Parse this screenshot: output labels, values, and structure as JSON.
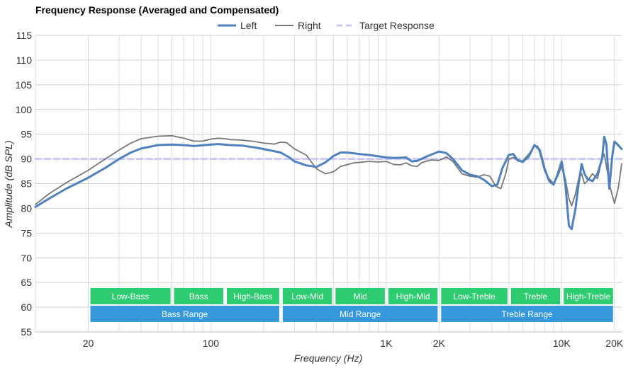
{
  "chart_data": {
    "type": "line",
    "title": "Frequency Response (Averaged and Compensated)",
    "xlabel": "Frequency (Hz)",
    "ylabel": "Amplitude (dB SPL)",
    "x_scale": "log",
    "xlim": [
      10,
      22000
    ],
    "ylim": [
      55,
      115
    ],
    "y_ticks": [
      55,
      60,
      65,
      70,
      75,
      80,
      85,
      90,
      95,
      100,
      105,
      110,
      115
    ],
    "x_ticks": [
      {
        "value": 20,
        "label": "20"
      },
      {
        "value": 100,
        "label": "100"
      },
      {
        "value": 1000,
        "label": "1K"
      },
      {
        "value": 2000,
        "label": "2K"
      },
      {
        "value": 10000,
        "label": "10K"
      },
      {
        "value": 20000,
        "label": "20K"
      }
    ],
    "grid": true,
    "legend_position": "top-center",
    "series": [
      {
        "name": "Left",
        "color": "#4f81bd",
        "style": "solid",
        "points": [
          [
            10,
            80.3
          ],
          [
            12,
            82
          ],
          [
            15,
            84
          ],
          [
            20,
            86.2
          ],
          [
            25,
            88.2
          ],
          [
            30,
            90
          ],
          [
            35,
            91.3
          ],
          [
            40,
            92.1
          ],
          [
            50,
            92.8
          ],
          [
            60,
            92.9
          ],
          [
            70,
            92.8
          ],
          [
            80,
            92.6
          ],
          [
            100,
            92.9
          ],
          [
            110,
            93
          ],
          [
            130,
            92.8
          ],
          [
            150,
            92.7
          ],
          [
            180,
            92.3
          ],
          [
            200,
            92
          ],
          [
            250,
            91.3
          ],
          [
            280,
            90.3
          ],
          [
            300,
            89.5
          ],
          [
            350,
            88.7
          ],
          [
            400,
            88.4
          ],
          [
            450,
            89.3
          ],
          [
            500,
            90.6
          ],
          [
            550,
            91.3
          ],
          [
            600,
            91.3
          ],
          [
            700,
            91
          ],
          [
            800,
            90.8
          ],
          [
            1000,
            90.3
          ],
          [
            1100,
            90.2
          ],
          [
            1300,
            90.3
          ],
          [
            1400,
            89.5
          ],
          [
            1500,
            89.6
          ],
          [
            1700,
            90.5
          ],
          [
            2000,
            91.5
          ],
          [
            2200,
            91.2
          ],
          [
            2400,
            90
          ],
          [
            2700,
            87.7
          ],
          [
            3000,
            86.8
          ],
          [
            3300,
            86.5
          ],
          [
            3600,
            85.8
          ],
          [
            4000,
            84.5
          ],
          [
            4300,
            84.8
          ],
          [
            4600,
            88.2
          ],
          [
            5000,
            90.8
          ],
          [
            5300,
            91
          ],
          [
            5600,
            89.8
          ],
          [
            6000,
            89.4
          ],
          [
            6500,
            90.5
          ],
          [
            7000,
            92.8
          ],
          [
            7500,
            91.8
          ],
          [
            8000,
            88
          ],
          [
            8500,
            85.5
          ],
          [
            9000,
            84.8
          ],
          [
            9500,
            87
          ],
          [
            10000,
            89.5
          ],
          [
            10500,
            85
          ],
          [
            11000,
            76.5
          ],
          [
            11400,
            75.8
          ],
          [
            12000,
            80
          ],
          [
            12500,
            85
          ],
          [
            13000,
            89
          ],
          [
            13500,
            87
          ],
          [
            14000,
            86
          ],
          [
            15000,
            85.5
          ],
          [
            16000,
            87
          ],
          [
            17000,
            90
          ],
          [
            17500,
            94.5
          ],
          [
            18000,
            93
          ],
          [
            18700,
            84
          ],
          [
            19500,
            91
          ],
          [
            20000,
            93.5
          ],
          [
            21000,
            92.8
          ],
          [
            22000,
            92
          ]
        ]
      },
      {
        "name": "Right",
        "color": "#777777",
        "style": "solid",
        "points": [
          [
            10,
            80.8
          ],
          [
            12,
            83
          ],
          [
            15,
            85.2
          ],
          [
            20,
            87.7
          ],
          [
            25,
            90
          ],
          [
            30,
            91.8
          ],
          [
            35,
            93.2
          ],
          [
            40,
            94.1
          ],
          [
            50,
            94.6
          ],
          [
            60,
            94.7
          ],
          [
            70,
            94.2
          ],
          [
            80,
            93.6
          ],
          [
            90,
            93.6
          ],
          [
            100,
            94
          ],
          [
            110,
            94.2
          ],
          [
            120,
            94.1
          ],
          [
            130,
            93.9
          ],
          [
            150,
            93.8
          ],
          [
            180,
            93.5
          ],
          [
            200,
            93.2
          ],
          [
            230,
            93
          ],
          [
            250,
            93.4
          ],
          [
            270,
            93.3
          ],
          [
            300,
            92
          ],
          [
            350,
            90.8
          ],
          [
            400,
            88
          ],
          [
            450,
            87
          ],
          [
            500,
            87.4
          ],
          [
            550,
            88.5
          ],
          [
            650,
            89.2
          ],
          [
            800,
            89.5
          ],
          [
            900,
            89.4
          ],
          [
            1000,
            89.5
          ],
          [
            1100,
            88.9
          ],
          [
            1200,
            88.8
          ],
          [
            1300,
            89.2
          ],
          [
            1400,
            88.6
          ],
          [
            1500,
            88.5
          ],
          [
            1600,
            89.3
          ],
          [
            1800,
            89.8
          ],
          [
            2000,
            89.7
          ],
          [
            2200,
            90.4
          ],
          [
            2400,
            89.5
          ],
          [
            2700,
            87
          ],
          [
            3000,
            86.5
          ],
          [
            3300,
            86.3
          ],
          [
            3600,
            86.8
          ],
          [
            3900,
            86.5
          ],
          [
            4200,
            84.5
          ],
          [
            4500,
            84
          ],
          [
            4800,
            87
          ],
          [
            5000,
            90
          ],
          [
            5300,
            90.3
          ],
          [
            5700,
            89.5
          ],
          [
            6000,
            89.6
          ],
          [
            6500,
            91
          ],
          [
            7000,
            92.6
          ],
          [
            7300,
            92.6
          ],
          [
            7600,
            90.5
          ],
          [
            8000,
            87.5
          ],
          [
            8500,
            86
          ],
          [
            9000,
            85
          ],
          [
            9500,
            86.5
          ],
          [
            10000,
            88.5
          ],
          [
            10500,
            86
          ],
          [
            11000,
            82
          ],
          [
            11400,
            80.5
          ],
          [
            12000,
            83
          ],
          [
            12500,
            86
          ],
          [
            13000,
            87
          ],
          [
            13500,
            85
          ],
          [
            14000,
            85.5
          ],
          [
            15000,
            87
          ],
          [
            16000,
            86
          ],
          [
            17000,
            90
          ],
          [
            17500,
            91
          ],
          [
            18000,
            88.5
          ],
          [
            19000,
            84
          ],
          [
            20000,
            81
          ],
          [
            21000,
            84
          ],
          [
            22000,
            89
          ]
        ]
      },
      {
        "name": "Target Response",
        "color": "#c9c9f7",
        "style": "dashed",
        "points": [
          [
            10,
            90
          ],
          [
            22000,
            90
          ]
        ]
      }
    ],
    "bands": [
      {
        "label": "Low-Bass",
        "from": 20,
        "to": 60,
        "row": 1,
        "color": "#2ecc71"
      },
      {
        "label": "Bass",
        "from": 60,
        "to": 120,
        "row": 1,
        "color": "#2ecc71"
      },
      {
        "label": "High-Bass",
        "from": 120,
        "to": 250,
        "row": 1,
        "color": "#2ecc71"
      },
      {
        "label": "Low-Mid",
        "from": 250,
        "to": 500,
        "row": 1,
        "color": "#2ecc71"
      },
      {
        "label": "Mid",
        "from": 500,
        "to": 1000,
        "row": 1,
        "color": "#2ecc71"
      },
      {
        "label": "High-Mid",
        "from": 1000,
        "to": 2000,
        "row": 1,
        "color": "#2ecc71"
      },
      {
        "label": "Low-Treble",
        "from": 2000,
        "to": 5000,
        "row": 1,
        "color": "#2ecc71"
      },
      {
        "label": "Treble",
        "from": 5000,
        "to": 10000,
        "row": 1,
        "color": "#2ecc71"
      },
      {
        "label": "High-Treble",
        "from": 10000,
        "to": 20000,
        "row": 1,
        "color": "#2ecc71"
      },
      {
        "label": "Bass Range",
        "from": 20,
        "to": 250,
        "row": 2,
        "color": "#3498db"
      },
      {
        "label": "Mid Range",
        "from": 250,
        "to": 2000,
        "row": 2,
        "color": "#3498db"
      },
      {
        "label": "Treble Range",
        "from": 2000,
        "to": 20000,
        "row": 2,
        "color": "#3498db"
      }
    ]
  }
}
